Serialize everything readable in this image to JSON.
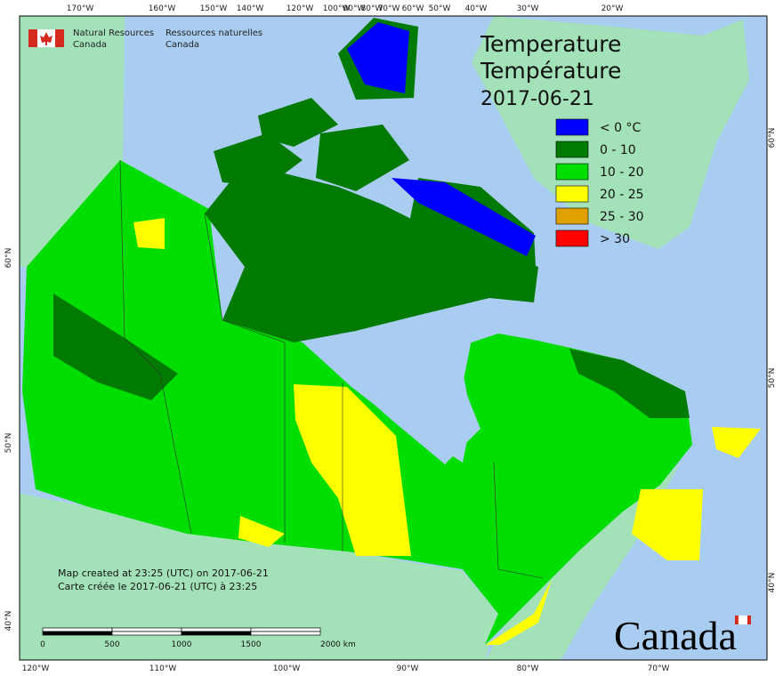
{
  "header": {
    "org_en_line1": "Natural Resources",
    "org_en_line2": "Canada",
    "org_fr_line1": "Ressources naturelles",
    "org_fr_line2": "Canada"
  },
  "title": {
    "line1": "Temperature",
    "line2": "Température",
    "date": "2017-06-21"
  },
  "legend": [
    {
      "label": "< 0 °C",
      "color": "#0000ff"
    },
    {
      "label": "0 - 10",
      "color": "#007a00"
    },
    {
      "label": "10 - 20",
      "color": "#00dd00"
    },
    {
      "label": "20 - 25",
      "color": "#ffff00"
    },
    {
      "label": "25 - 30",
      "color": "#e0a000"
    },
    {
      "label": "> 30",
      "color": "#ff0000"
    }
  ],
  "footer": {
    "note_en": "Map created at 23:25 (UTC) on 2017-06-21",
    "note_fr": "Carte créée le 2017-06-21 (UTC) à 23:25",
    "wordmark": "Canada"
  },
  "scale_bar": {
    "labels": [
      "0",
      "500",
      "1000",
      "1500",
      "2000 km"
    ]
  },
  "graticule": {
    "top": [
      "170°W",
      "160°W",
      "150°W",
      "140°W",
      "120°W",
      "100°W",
      "90°W",
      "80°W",
      "70°W",
      "60°W",
      "50°W",
      "40°W",
      "30°W",
      "20°W"
    ],
    "bottom": [
      "120°W",
      "110°W",
      "100°W",
      "90°W",
      "80°W",
      "70°W"
    ],
    "left": [
      "60°N",
      "50°N",
      "40°N"
    ],
    "right": [
      "60°N",
      "50°N",
      "40°N"
    ]
  }
}
